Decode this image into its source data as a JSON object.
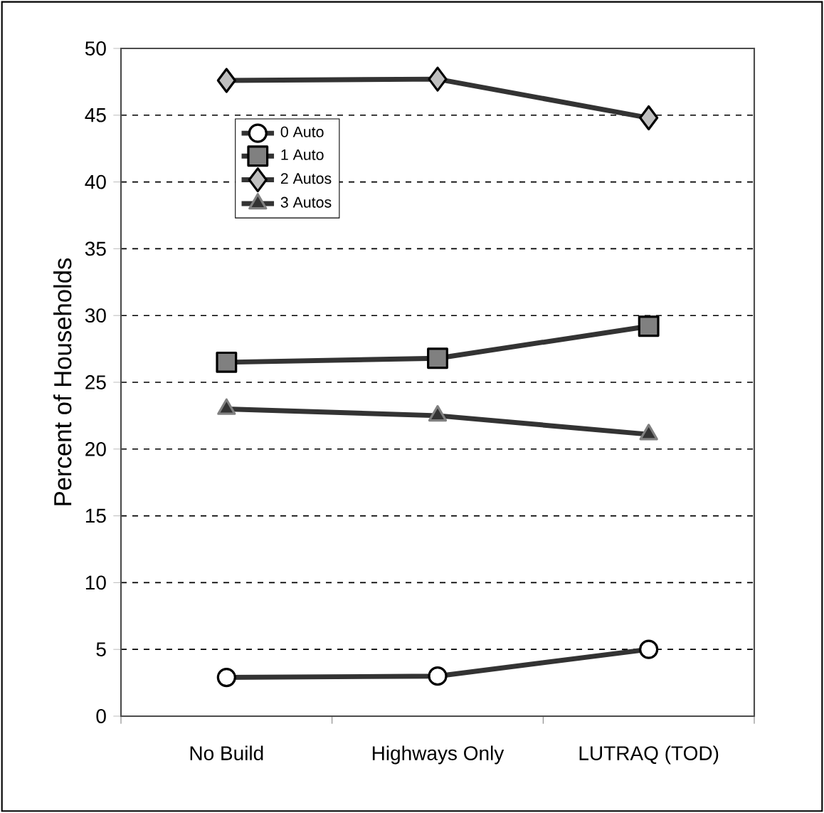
{
  "chart_data": {
    "type": "line",
    "ylabel": "Percent of Households",
    "categories": [
      "No Build",
      "Highways Only",
      "LUTRAQ (TOD)"
    ],
    "series": [
      {
        "name": "0 Auto",
        "color": "#333333",
        "marker": "circle",
        "values": [
          2.9,
          3.0,
          5.0
        ]
      },
      {
        "name": "1 Auto",
        "color": "#333333",
        "marker": "square",
        "values": [
          26.5,
          26.8,
          29.2
        ]
      },
      {
        "name": "2 Autos",
        "color": "#333333",
        "marker": "diamond",
        "values": [
          47.6,
          47.7,
          44.8
        ]
      },
      {
        "name": "3 Autos",
        "color": "#333333",
        "marker": "triangle",
        "values": [
          23.0,
          22.5,
          21.1
        ]
      }
    ],
    "ylim": [
      0,
      50
    ],
    "yticks": [
      0,
      5,
      10,
      15,
      20,
      25,
      30,
      35,
      40,
      45,
      50
    ],
    "grid": "y",
    "legend": "top left",
    "line_style": "solid"
  }
}
